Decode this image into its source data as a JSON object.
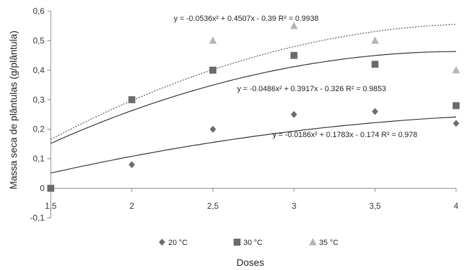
{
  "chart_data": {
    "type": "scatter",
    "xlabel": "Doses",
    "ylabel": "Massa seca de plântulas (g/plântula)",
    "xlim": [
      1.5,
      4
    ],
    "ylim": [
      -0.1,
      0.6
    ],
    "x_ticks": [
      "1,5",
      "2",
      "2,5",
      "3",
      "3,5",
      "4"
    ],
    "y_ticks": [
      "-0,1",
      "0",
      "0,1",
      "0,2",
      "0,3",
      "0,4",
      "0,5",
      "0,6"
    ],
    "x": [
      1.5,
      2,
      2.5,
      3,
      3.5,
      4
    ],
    "grid": false,
    "legend_position": "bottom",
    "series": [
      {
        "name": "20 °C",
        "marker": "diamond",
        "color": "#6b6b6b",
        "values": [
          0,
          0.08,
          0.2,
          0.25,
          0.26,
          0.22
        ],
        "fit": {
          "a": -0.0186,
          "b": 0.1783,
          "c": -0.174,
          "line": "solid"
        },
        "equation": "y = -0.0186x² + 0.1783x - 0.174  R² = 0.978"
      },
      {
        "name": "30 °C",
        "marker": "square",
        "color": "#6b6b6b",
        "values": [
          0,
          0.3,
          0.4,
          0.45,
          0.42,
          0.28
        ],
        "fit": {
          "a": -0.0486,
          "b": 0.3917,
          "c": -0.326,
          "line": "solid"
        },
        "equation": "y = -0.0486x² + 0.3917x - 0.326  R² = 0.9853"
      },
      {
        "name": "35 °C",
        "marker": "triangle",
        "color": "#b5b5b5",
        "values": [
          0,
          0.3,
          0.5,
          0.55,
          0.5,
          0.4
        ],
        "fit": {
          "a": -0.0536,
          "b": 0.4507,
          "c": -0.39,
          "line": "dotted"
        },
        "equation": "y = -0.0536x² + 0.4507x - 0.39  R² = 0.9938"
      }
    ]
  }
}
